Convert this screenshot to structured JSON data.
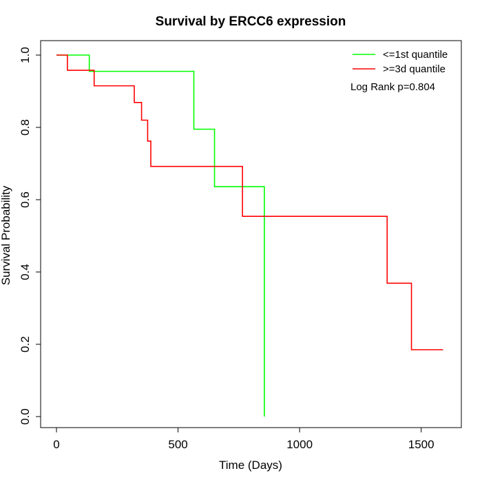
{
  "chart_data": {
    "type": "line",
    "step": true,
    "title": "Survival by ERCC6 expression",
    "xlabel": "Time (Days)",
    "ylabel": "Survival Probability",
    "xlim": [
      0,
      1600
    ],
    "ylim": [
      0,
      1.0
    ],
    "x_ticks": [
      0,
      500,
      1000,
      1500
    ],
    "x_tick_labels": [
      "0",
      "500",
      "1000",
      "1500"
    ],
    "y_ticks": [
      0.0,
      0.2,
      0.4,
      0.6,
      0.8,
      1.0
    ],
    "y_tick_labels": [
      "0.0",
      "0.2",
      "0.4",
      "0.6",
      "0.8",
      "1.0"
    ],
    "grid": false,
    "legend_position": "top-right",
    "annotation": "Log Rank p=0.804",
    "series": [
      {
        "name": "<=1st quantile",
        "color": "#00ff00",
        "x": [
          0,
          135,
          550,
          565,
          650,
          855,
          855
        ],
        "y": [
          1.0,
          0.955,
          0.955,
          0.795,
          0.636,
          0.424,
          0.0
        ]
      },
      {
        "name": ">=3d quantile",
        "color": "#ff0000",
        "x": [
          0,
          45,
          155,
          320,
          350,
          375,
          388,
          765,
          1360,
          1460,
          1590
        ],
        "y": [
          1.0,
          0.958,
          0.915,
          0.869,
          0.82,
          0.762,
          0.692,
          0.554,
          0.369,
          0.185,
          0.185
        ]
      }
    ]
  }
}
